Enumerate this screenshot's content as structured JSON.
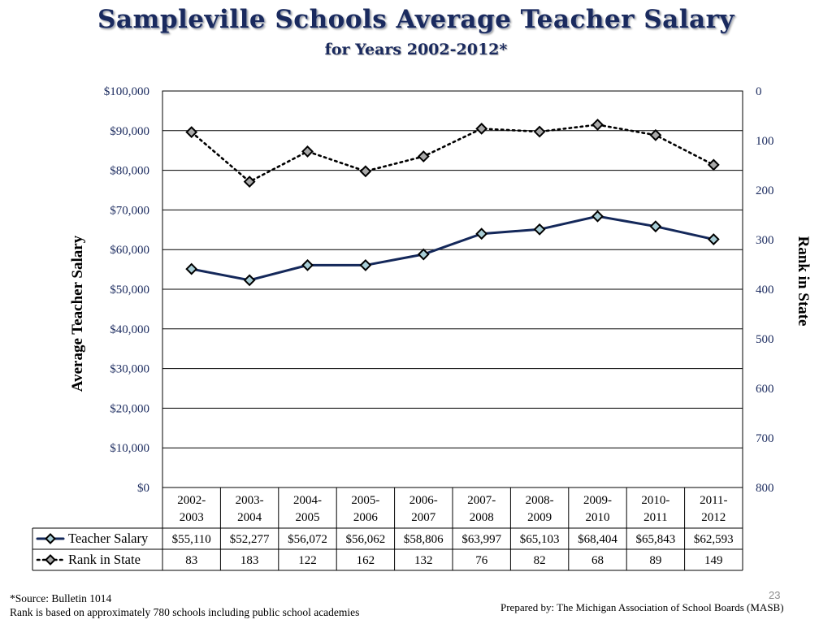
{
  "title": "Sampleville Schools Average Teacher Salary",
  "subtitle": "for Years 2002-2012*",
  "source_note": "*Source: Bulletin 1014",
  "rank_note": "Rank is based on approximately 780 schools including public school academies",
  "prepared_by": "Prepared by: The Michigan Association of School Boards (MASB)",
  "page_number": "23",
  "colors": {
    "salary_line": "#14285a",
    "rank_line": "#000000",
    "marker_fill": "#a9a9a9",
    "salary_marker_fill": "#a8cdd6",
    "grid": "#000000"
  },
  "chart_data": {
    "type": "line",
    "categories": [
      [
        "2002-",
        "2003"
      ],
      [
        "2003-",
        "2004"
      ],
      [
        "2004-",
        "2005"
      ],
      [
        "2005-",
        "2006"
      ],
      [
        "2006-",
        "2007"
      ],
      [
        "2007-",
        "2008"
      ],
      [
        "2008-",
        "2009"
      ],
      [
        "2009-",
        "2010"
      ],
      [
        "2010-",
        "2011"
      ],
      [
        "2011-",
        "2012"
      ]
    ],
    "ylabel": "Average Teacher Salary",
    "y2label": "Rank in State",
    "ylim": [
      0,
      100000
    ],
    "y2lim": [
      0,
      800
    ],
    "y2_inverted": true,
    "yticks": [
      "$0",
      "$10,000",
      "$20,000",
      "$30,000",
      "$40,000",
      "$50,000",
      "$60,000",
      "$70,000",
      "$80,000",
      "$90,000",
      "$100,000"
    ],
    "y2ticks": [
      "0",
      "100",
      "200",
      "300",
      "400",
      "500",
      "600",
      "700",
      "800"
    ],
    "grid": true,
    "legend": "data-table",
    "series": [
      {
        "name": "Teacher Salary",
        "axis": "left",
        "style": "solid",
        "values": [
          55110,
          52277,
          56072,
          56062,
          58806,
          63997,
          65103,
          68404,
          65843,
          62593
        ],
        "labels": [
          "$55,110",
          "$52,277",
          "$56,072",
          "$56,062",
          "$58,806",
          "$63,997",
          "$65,103",
          "$68,404",
          "$65,843",
          "$62,593"
        ]
      },
      {
        "name": "Rank in State",
        "axis": "right",
        "style": "dotted",
        "values": [
          83,
          183,
          122,
          162,
          132,
          76,
          82,
          68,
          89,
          149
        ],
        "labels": [
          "83",
          "183",
          "122",
          "162",
          "132",
          "76",
          "82",
          "68",
          "89",
          "149"
        ]
      }
    ]
  }
}
